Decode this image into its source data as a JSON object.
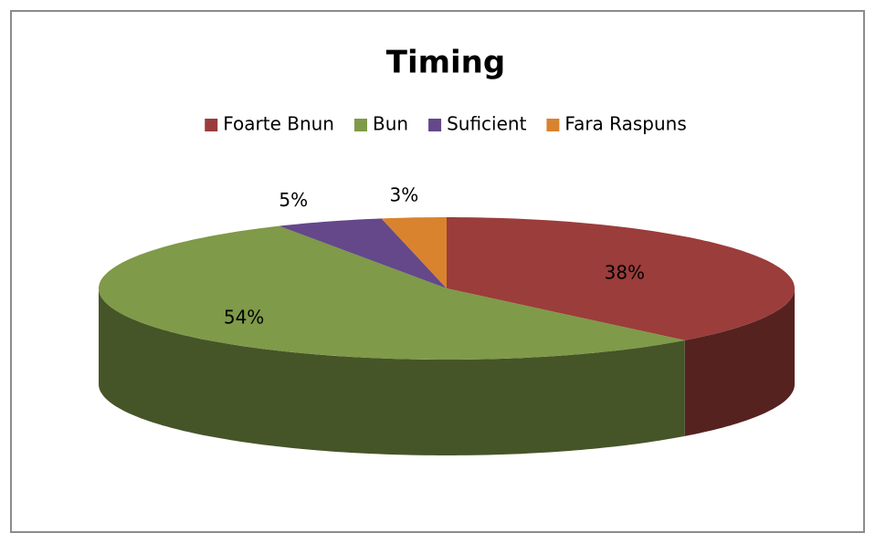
{
  "chart_data": {
    "type": "pie",
    "title": "Timing",
    "categories": [
      "Foarte Bnun",
      "Bun",
      "Suficient",
      "Fara Raspuns"
    ],
    "values": [
      38,
      54,
      5,
      3
    ],
    "value_labels": [
      "38%",
      "54%",
      "5%",
      "3%"
    ],
    "colors": [
      "#9b3d3b",
      "#7f9a48",
      "#64488a",
      "#d9832e"
    ],
    "legend": "top"
  }
}
